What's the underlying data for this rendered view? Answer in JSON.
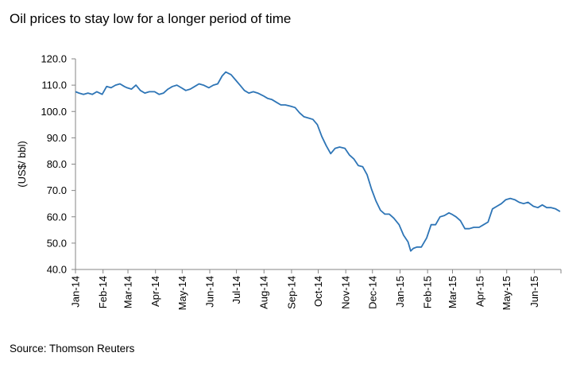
{
  "title": "Oil prices to stay low for a longer period of time",
  "source": "Source: Thomson Reuters",
  "chart_data": {
    "type": "line",
    "title": "Oil prices to stay low for a longer period of time",
    "xlabel": "",
    "ylabel": "(US$/ bbl)",
    "ylim": [
      40.0,
      120.0
    ],
    "yticks": [
      "40.0",
      "50.0",
      "60.0",
      "70.0",
      "80.0",
      "90.0",
      "100.0",
      "110.0",
      "120.0"
    ],
    "xticks": [
      "Jan-14",
      "Feb-14",
      "Mar-14",
      "Apr-14",
      "May-14",
      "Jun-14",
      "Jul-14",
      "Aug-14",
      "Sep-14",
      "Oct-14",
      "Nov-14",
      "Dec-14",
      "Jan-15",
      "Feb-15",
      "Mar-15",
      "Apr-15",
      "May-15",
      "Jun-15"
    ],
    "grid": false,
    "legend": "none",
    "line_color": "#2e75b6",
    "series": [
      {
        "x": [
          "2014-01-01",
          "2014-01-05",
          "2014-01-10",
          "2014-01-15",
          "2014-01-20",
          "2014-01-25",
          "2014-01-31",
          "2014-02-05",
          "2014-02-10",
          "2014-02-15",
          "2014-02-20",
          "2014-02-25",
          "2014-02-28",
          "2014-03-05",
          "2014-03-10",
          "2014-03-15",
          "2014-03-20",
          "2014-03-25",
          "2014-03-31",
          "2014-04-05",
          "2014-04-10",
          "2014-04-15",
          "2014-04-20",
          "2014-04-25",
          "2014-04-30",
          "2014-05-05",
          "2014-05-10",
          "2014-05-15",
          "2014-05-20",
          "2014-05-25",
          "2014-05-31",
          "2014-06-05",
          "2014-06-10",
          "2014-06-15",
          "2014-06-19",
          "2014-06-25",
          "2014-06-30",
          "2014-07-05",
          "2014-07-10",
          "2014-07-15",
          "2014-07-20",
          "2014-07-25",
          "2014-07-31",
          "2014-08-05",
          "2014-08-10",
          "2014-08-15",
          "2014-08-20",
          "2014-08-25",
          "2014-08-31",
          "2014-09-05",
          "2014-09-10",
          "2014-09-15",
          "2014-09-20",
          "2014-09-25",
          "2014-09-30",
          "2014-10-05",
          "2014-10-10",
          "2014-10-15",
          "2014-10-20",
          "2014-10-25",
          "2014-10-31",
          "2014-11-05",
          "2014-11-10",
          "2014-11-15",
          "2014-11-20",
          "2014-11-25",
          "2014-11-30",
          "2014-12-05",
          "2014-12-10",
          "2014-12-15",
          "2014-12-20",
          "2014-12-25",
          "2014-12-31",
          "2015-01-05",
          "2015-01-10",
          "2015-01-13",
          "2015-01-16",
          "2015-01-20",
          "2015-01-25",
          "2015-01-31",
          "2015-02-05",
          "2015-02-10",
          "2015-02-15",
          "2015-02-20",
          "2015-02-25",
          "2015-02-28",
          "2015-03-05",
          "2015-03-10",
          "2015-03-15",
          "2015-03-20",
          "2015-03-25",
          "2015-03-31",
          "2015-04-05",
          "2015-04-10",
          "2015-04-15",
          "2015-04-20",
          "2015-04-25",
          "2015-04-30",
          "2015-05-05",
          "2015-05-10",
          "2015-05-15",
          "2015-05-20",
          "2015-05-25",
          "2015-05-31",
          "2015-06-05",
          "2015-06-10",
          "2015-06-15",
          "2015-06-20",
          "2015-06-25",
          "2015-06-30"
        ],
        "y": [
          107.5,
          107.0,
          106.5,
          107.0,
          106.5,
          107.5,
          106.5,
          109.5,
          109.0,
          110.0,
          110.5,
          109.5,
          109.0,
          108.5,
          110.0,
          108.0,
          107.0,
          107.5,
          107.5,
          106.5,
          107.0,
          108.5,
          109.5,
          110.0,
          109.0,
          108.0,
          108.5,
          109.5,
          110.5,
          110.0,
          109.0,
          110.0,
          110.5,
          113.5,
          115.0,
          114.0,
          112.0,
          110.0,
          108.0,
          107.0,
          107.5,
          107.0,
          106.0,
          105.0,
          104.5,
          103.5,
          102.5,
          102.5,
          102.0,
          101.5,
          99.5,
          98.0,
          97.5,
          97.0,
          95.0,
          90.5,
          87.0,
          84.0,
          86.0,
          86.5,
          86.0,
          83.5,
          82.0,
          79.5,
          79.0,
          76.0,
          70.5,
          66.0,
          62.5,
          61.0,
          61.0,
          59.5,
          57.0,
          53.0,
          50.5,
          47.0,
          48.0,
          48.5,
          48.5,
          52.0,
          57.0,
          57.0,
          60.0,
          60.5,
          61.5,
          61.0,
          60.0,
          58.5,
          55.5,
          55.5,
          56.0,
          56.0,
          57.0,
          58.0,
          63.0,
          64.0,
          65.0,
          66.5,
          67.0,
          66.5,
          65.5,
          65.0,
          65.5,
          64.0,
          63.5,
          64.5,
          63.5,
          63.5,
          63.0,
          62.0
        ]
      }
    ]
  }
}
